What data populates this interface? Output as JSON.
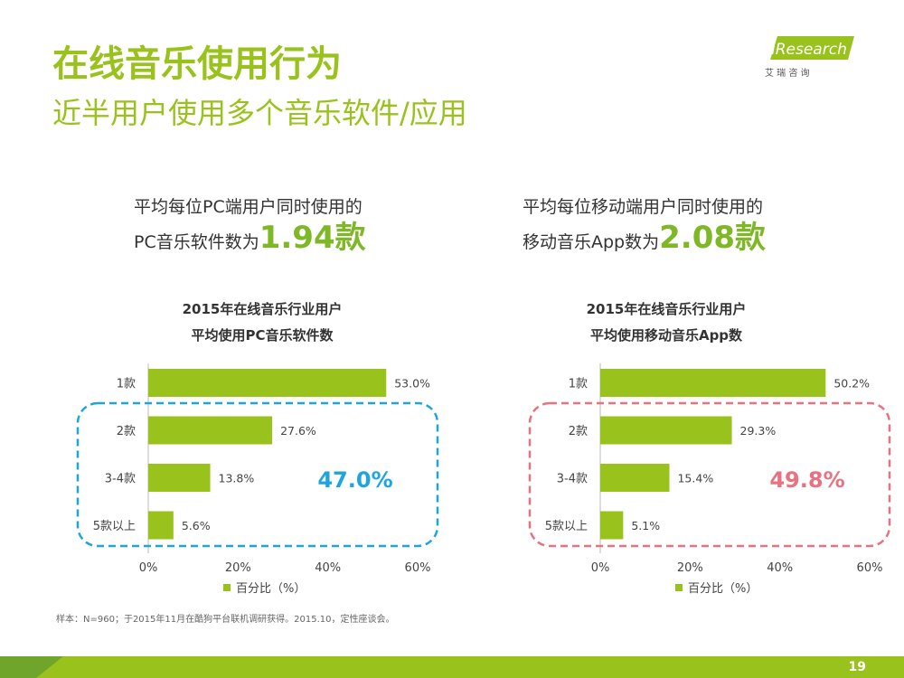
{
  "header": {
    "title": "在线音乐使用行为",
    "subtitle": "近半用户使用多个音乐软件/应用"
  },
  "logo": {
    "brand": "iResearch",
    "chinese": "艾 瑞 咨 询"
  },
  "stats": {
    "pc": {
      "line1": "平均每位PC端用户同时使用的",
      "line2_prefix": "PC音乐软件数为",
      "big": "1.94款"
    },
    "mobile": {
      "line1": "平均每位移动端用户同时使用的",
      "line2_prefix": "移动音乐App数为",
      "big": "2.08款"
    }
  },
  "charts": {
    "pc": {
      "title_line1": "2015年在线音乐行业用户",
      "title_line2": "平均使用PC音乐软件数",
      "highlight": "47.0%",
      "highlight_color": "#1ea5e0",
      "legend": "百分比（%）"
    },
    "mobile": {
      "title_line1": "2015年在线音乐行业用户",
      "title_line2": "平均使用移动音乐App数",
      "highlight": "49.8%",
      "highlight_color": "#e8727f",
      "legend": "百分比（%）"
    }
  },
  "colors": {
    "accent": "#9ac21c",
    "bar": "#9ac21c",
    "big_number": "#7fb827"
  },
  "chart_data": [
    {
      "type": "bar",
      "orientation": "horizontal",
      "title": "2015年在线音乐行业用户平均使用PC音乐软件数",
      "categories": [
        "1款",
        "2款",
        "3-4款",
        "5款以上"
      ],
      "values": [
        53.0,
        27.6,
        13.8,
        5.6
      ],
      "value_labels": [
        "53.0%",
        "27.6%",
        "13.8%",
        "5.6%"
      ],
      "series": [
        {
          "name": "百分比（%）",
          "values": [
            53.0,
            27.6,
            13.8,
            5.6
          ]
        }
      ],
      "xlim": [
        0,
        60
      ],
      "xticks": [
        "0%",
        "20%",
        "40%",
        "60%"
      ],
      "annotation": "47.0%",
      "legend": "bottom"
    },
    {
      "type": "bar",
      "orientation": "horizontal",
      "title": "2015年在线音乐行业用户平均使用移动音乐App数",
      "categories": [
        "1款",
        "2款",
        "3-4款",
        "5款以上"
      ],
      "values": [
        50.2,
        29.3,
        15.4,
        5.1
      ],
      "value_labels": [
        "50.2%",
        "29.3%",
        "15.4%",
        "5.1%"
      ],
      "series": [
        {
          "name": "百分比（%）",
          "values": [
            50.2,
            29.3,
            15.4,
            5.1
          ]
        }
      ],
      "xlim": [
        0,
        60
      ],
      "xticks": [
        "0%",
        "20%",
        "40%",
        "60%"
      ],
      "annotation": "49.8%",
      "legend": "bottom"
    }
  ],
  "footnote": "样本：N=960；于2015年11月在酷狗平台联机调研获得。2015.10，定性座谈会。",
  "page_number": "19"
}
